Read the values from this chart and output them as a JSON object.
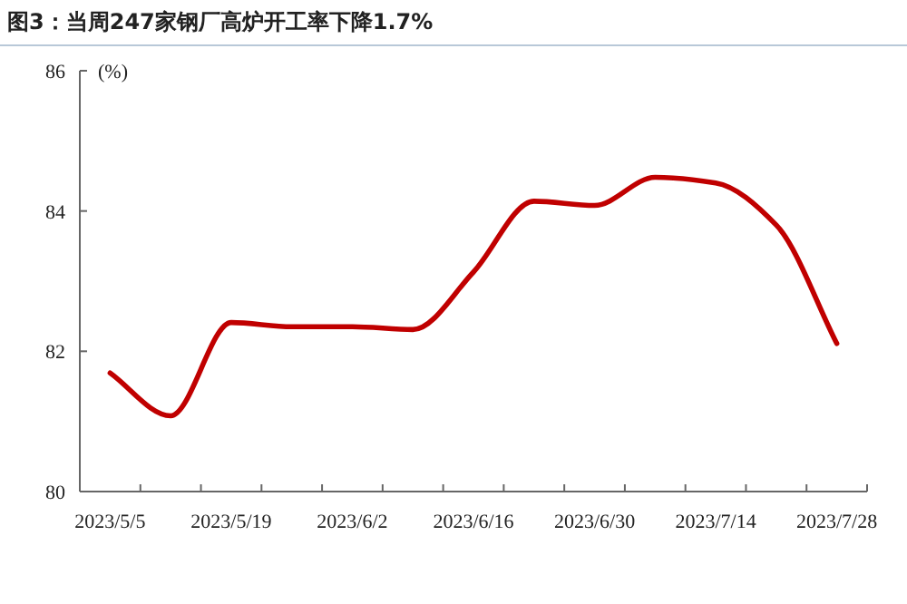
{
  "chart_data": {
    "type": "line",
    "title": "图3：当周247家钢厂高炉开工率下降1.7%",
    "ylabel": "(%)",
    "categories": [
      "2023/5/5",
      null,
      "2023/5/19",
      null,
      "2023/6/2",
      null,
      "2023/6/16",
      null,
      "2023/6/30",
      null,
      "2023/7/14",
      null,
      "2023/7/28"
    ],
    "series": [
      {
        "color": "#c00000",
        "values": [
          81.69,
          81.08,
          82.41,
          82.35,
          82.35,
          82.31,
          83.13,
          84.14,
          84.08,
          84.48,
          84.4,
          83.8,
          82.11
        ]
      }
    ],
    "ylim": [
      80,
      86
    ],
    "yticks": [
      80,
      82,
      84,
      86
    ],
    "marker": "none",
    "line_style": "solid"
  }
}
